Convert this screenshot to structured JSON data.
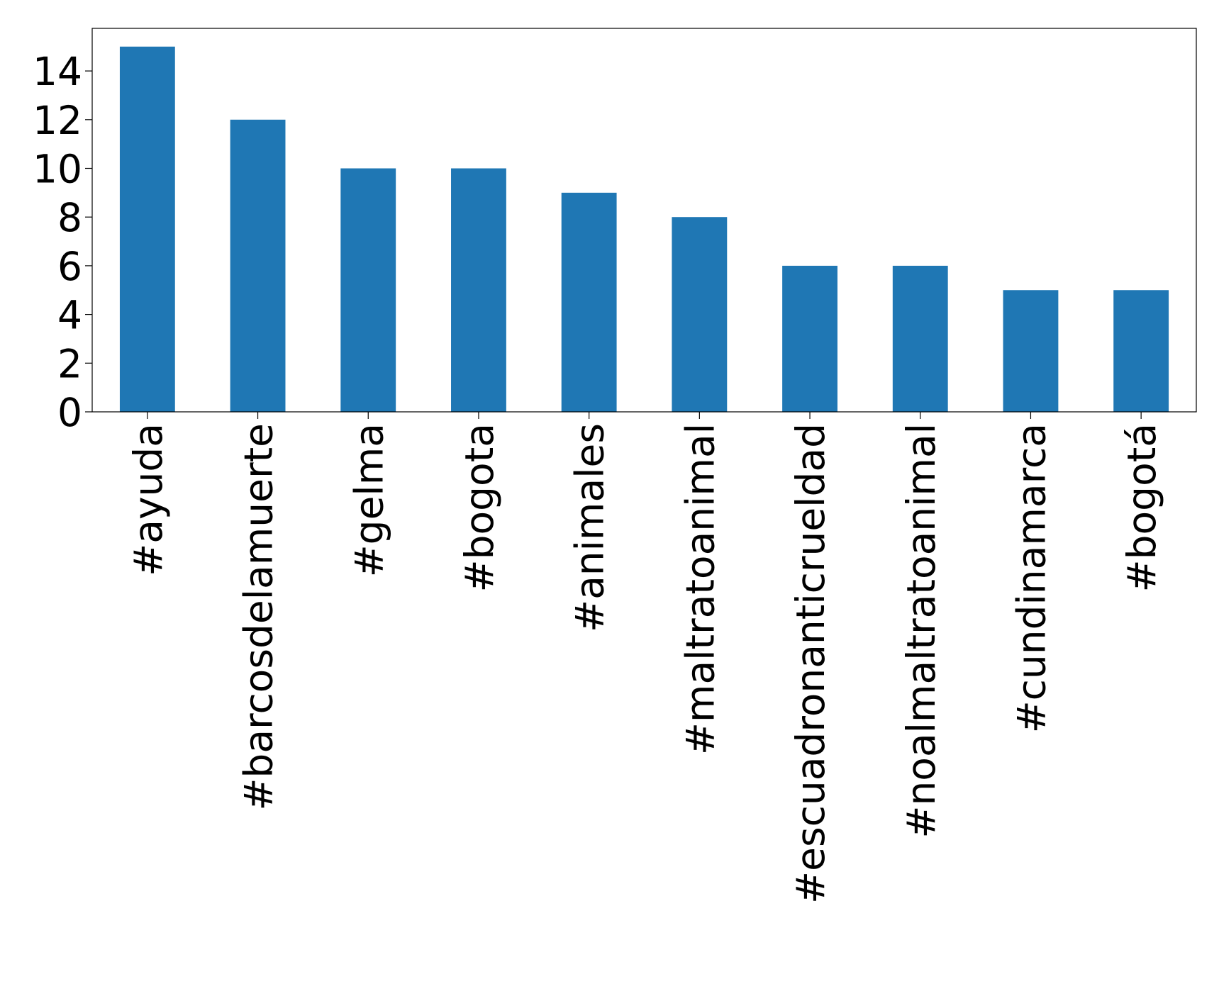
{
  "chart_data": {
    "type": "bar",
    "categories": [
      "#ayuda",
      "#barcosdelamuerte",
      "#gelma",
      "#bogota",
      "#animales",
      "#maltratoanimal",
      "#escuadronanticrueldad",
      "#noalmaltratoanimal",
      "#cundinamarca",
      "#bogotá"
    ],
    "values": [
      15,
      12,
      10,
      10,
      9,
      8,
      6,
      6,
      5,
      5
    ],
    "color": "#1f77b4",
    "ylim": [
      0,
      15.75
    ],
    "yticks": [
      0,
      2,
      4,
      6,
      8,
      10,
      12,
      14
    ],
    "grid": false
  }
}
